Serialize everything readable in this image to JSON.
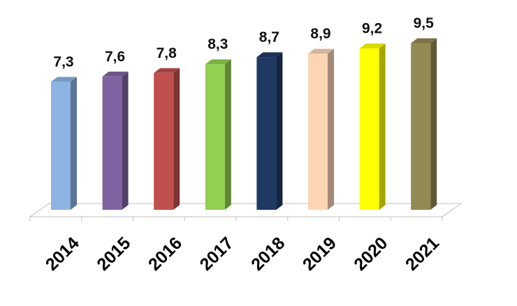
{
  "chart_data": {
    "type": "bar",
    "style": "3d-column",
    "categories": [
      "2014",
      "2015",
      "2016",
      "2017",
      "2018",
      "2019",
      "2020",
      "2021"
    ],
    "values": [
      7.3,
      7.6,
      7.8,
      8.3,
      8.7,
      8.9,
      9.2,
      9.5
    ],
    "value_labels": [
      "7,3",
      "7,6",
      "7,8",
      "8,3",
      "8,7",
      "8,9",
      "9,2",
      "9,5"
    ],
    "colors": [
      "#8db3e2",
      "#8064a2",
      "#c0504d",
      "#92d050",
      "#1f3864",
      "#fcd5b4",
      "#ffff00",
      "#938953"
    ],
    "title": "",
    "xlabel": "",
    "ylabel": "",
    "ylim": [
      0,
      9.5
    ],
    "grid": false,
    "legend": "none",
    "x_tick_rotation": -45
  }
}
